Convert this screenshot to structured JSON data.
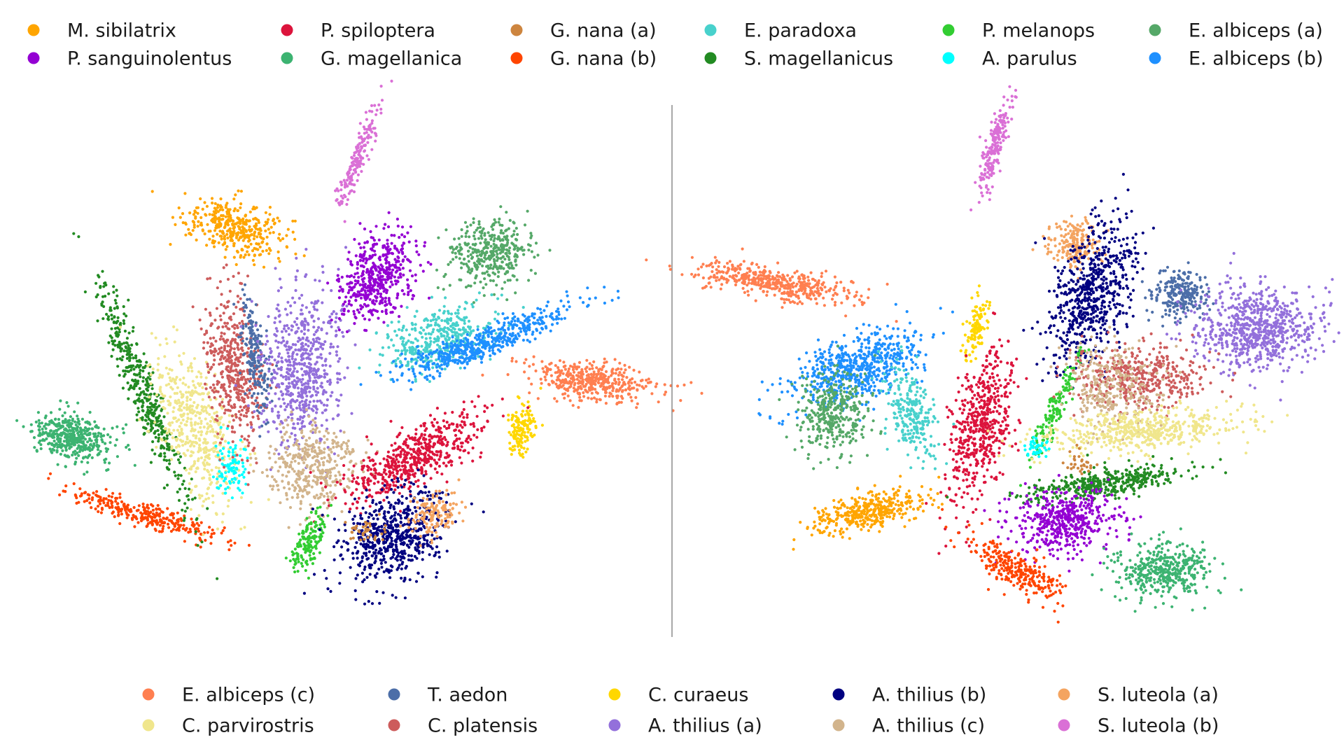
{
  "chart_data": {
    "type": "scatter",
    "title": "",
    "xlabel": "",
    "ylabel": "",
    "axes_visible": false,
    "grid": false,
    "panels": [
      "left",
      "right"
    ],
    "legend_top": [
      {
        "name": "M. sibilatrix",
        "color": "#FFA500"
      },
      {
        "name": "P. sanguinolentus",
        "color": "#9400D3"
      },
      {
        "name": "P. spiloptera",
        "color": "#DC143C"
      },
      {
        "name": "G. magellanica",
        "color": "#3CB371"
      },
      {
        "name": "G. nana (a)",
        "color": "#CD853F"
      },
      {
        "name": "G. nana (b)",
        "color": "#FF4500"
      },
      {
        "name": "E. paradoxa",
        "color": "#48D1CC"
      },
      {
        "name": "S. magellanicus",
        "color": "#228B22"
      },
      {
        "name": "P. melanops",
        "color": "#32CD32"
      },
      {
        "name": "A. parulus",
        "color": "#00FFFF"
      },
      {
        "name": "E. albiceps (a)",
        "color": "#55A868"
      },
      {
        "name": "E. albiceps (b)",
        "color": "#1E90FF"
      }
    ],
    "legend_bottom": [
      {
        "name": "E. albiceps (c)",
        "color": "#FF7F50"
      },
      {
        "name": "C. parvirostris",
        "color": "#F0E68C"
      },
      {
        "name": "T. aedon",
        "color": "#4C6EA8"
      },
      {
        "name": "C. platensis",
        "color": "#CD5C5C"
      },
      {
        "name": "C. curaeus",
        "color": "#FFD700"
      },
      {
        "name": "A. thilius (a)",
        "color": "#9370DB"
      },
      {
        "name": "A. thilius (b)",
        "color": "#000080"
      },
      {
        "name": "A. thilius (c)",
        "color": "#D2B48C"
      },
      {
        "name": "S. luteola (a)",
        "color": "#F4A460"
      },
      {
        "name": "S. luteola (b)",
        "color": "#DA70D6"
      }
    ]
  }
}
